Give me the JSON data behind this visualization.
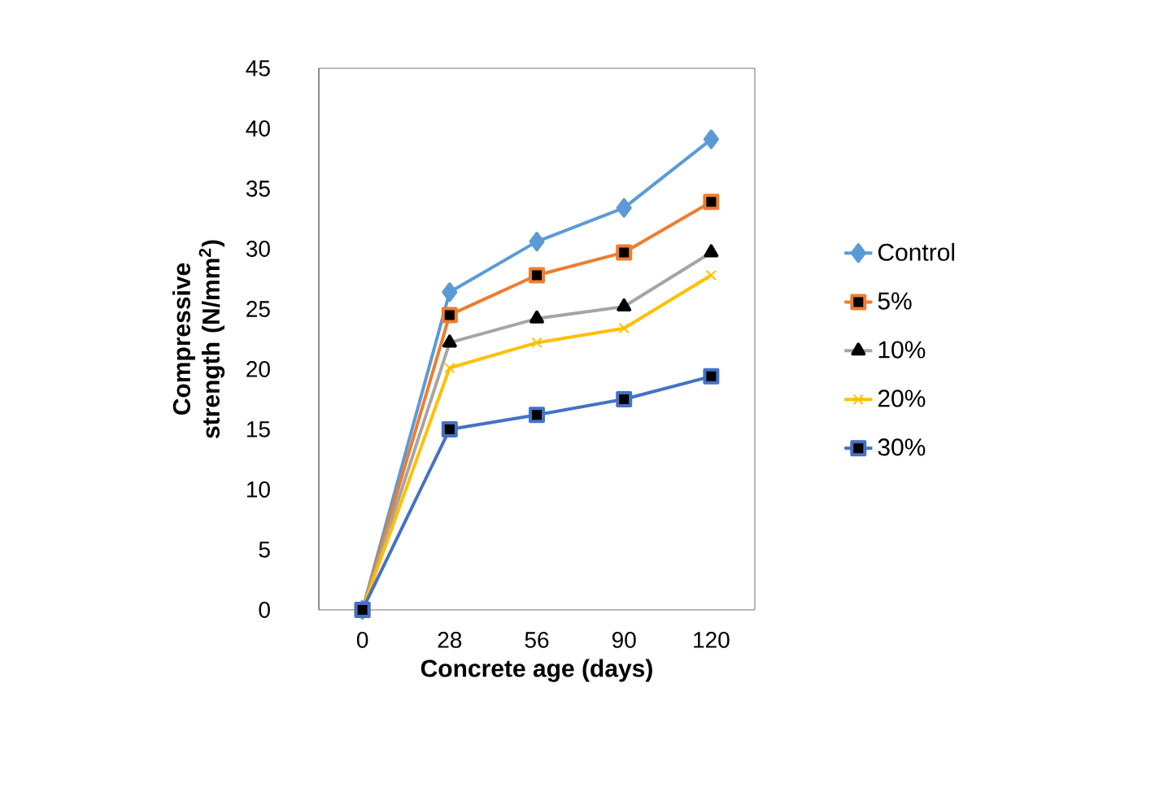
{
  "chart_data": {
    "type": "line",
    "xlabel": "Concrete age (days)",
    "ylabel": "Compressive strength (N/mm$^{2}$)",
    "categories": [
      "0",
      "28",
      "56",
      "90",
      "120"
    ],
    "ylim": [
      0,
      45
    ],
    "yticks": [
      0,
      5,
      10,
      15,
      20,
      25,
      30,
      35,
      40,
      45
    ],
    "grid": false,
    "legend": "right",
    "line_style": "solid",
    "series": [
      {
        "name": "Control",
        "color": "#5b9bd5",
        "marker": "diamond",
        "values": [
          0,
          26.4,
          30.6,
          33.4,
          39.1
        ]
      },
      {
        "name": "5%",
        "color": "#ed7d31",
        "marker": "square",
        "values": [
          0,
          24.5,
          27.8,
          29.7,
          33.9
        ]
      },
      {
        "name": "10%",
        "color": "#a5a5a5",
        "marker": "triangle",
        "values": [
          0,
          22.2,
          24.2,
          25.2,
          29.7
        ]
      },
      {
        "name": "20%",
        "color": "#ffc000",
        "marker": "cross",
        "values": [
          0,
          20.1,
          22.2,
          23.4,
          27.8
        ]
      },
      {
        "name": "30%",
        "color": "#4472c4",
        "marker": "square",
        "values": [
          0,
          15.0,
          16.2,
          17.5,
          19.4
        ]
      }
    ]
  }
}
